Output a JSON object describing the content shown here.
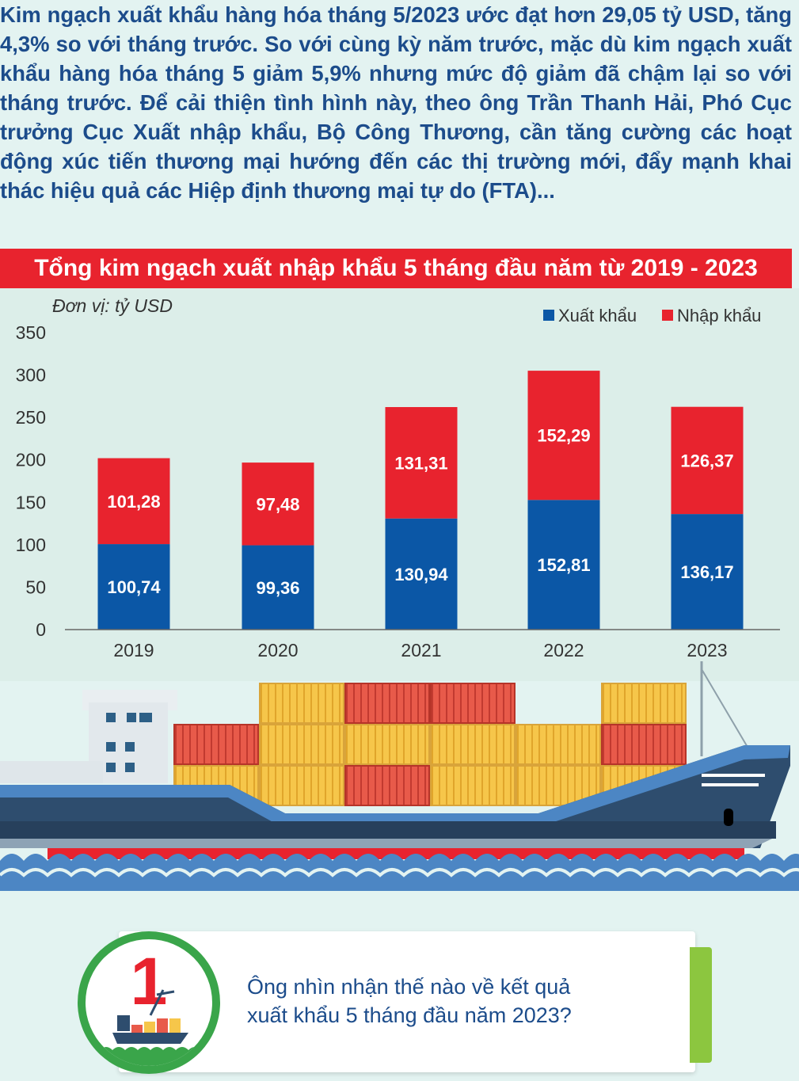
{
  "intro": {
    "text": "Kim ngạch xuất khẩu hàng hóa tháng 5/2023 ước đạt hơn 29,05 tỷ USD, tăng 4,3% so với tháng trước. So với cùng kỳ năm trước, mặc dù kim ngạch xuất khẩu hàng hóa tháng 5 giảm 5,9% nhưng mức độ giảm đã chậm lại so với tháng trước. Để cải thiện tình hình này, theo ông Trần Thanh Hải, Phó Cục trưởng Cục Xuất nhập khẩu, Bộ Công Thương, cần tăng cường các hoạt động xúc tiến thương mại hướng đến các thị trường mới, đẩy mạnh khai thác hiệu quả các Hiệp định thương mại tự do (FTA)..."
  },
  "chart_data": {
    "type": "bar",
    "stacked": true,
    "title": "Tổng kim ngạch xuất nhập khẩu 5 tháng đầu năm từ 2019 - 2023",
    "unit_label": "Đơn vị: tỷ USD",
    "categories": [
      "2019",
      "2020",
      "2021",
      "2022",
      "2023"
    ],
    "series": [
      {
        "name": "Xuất khẩu",
        "color": "#0b57a6",
        "values": [
          100.74,
          99.36,
          130.94,
          152.81,
          136.17
        ],
        "labels": [
          "100,74",
          "99,36",
          "130,94",
          "152,81",
          "136,17"
        ]
      },
      {
        "name": "Nhập khẩu",
        "color": "#e8232e",
        "values": [
          101.28,
          97.48,
          131.31,
          152.29,
          126.37
        ],
        "labels": [
          "101,28",
          "97,48",
          "131,31",
          "152,29",
          "126,37"
        ]
      }
    ],
    "ylim": [
      0,
      350
    ],
    "yticks": [
      "0",
      "50",
      "100",
      "150",
      "200",
      "250",
      "300",
      "350"
    ],
    "legend": "top-right",
    "grid": false
  },
  "question": {
    "number": "1",
    "lines": [
      "Ông nhìn nhận thế nào về kết quả",
      "xuất khẩu 5 tháng đầu năm 2023?"
    ]
  },
  "colors": {
    "accent_red": "#e8232e",
    "accent_blue": "#0b57a6",
    "text_blue": "#1c4c8b",
    "green": "#3aa54a"
  }
}
